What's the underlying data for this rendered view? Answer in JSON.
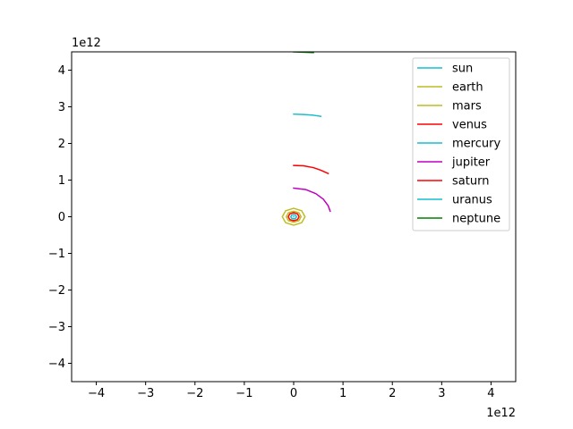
{
  "chart_data": {
    "type": "line",
    "title": "",
    "xlabel": "",
    "ylabel": "",
    "x_offset_label": "1e12",
    "y_offset_label": "1e12",
    "xlim": [
      -4.5,
      4.5
    ],
    "ylim": [
      -4.5,
      4.5
    ],
    "xticks": [
      -4,
      -3,
      -2,
      -1,
      0,
      1,
      2,
      3,
      4
    ],
    "yticks": [
      -4,
      -3,
      -2,
      -1,
      0,
      1,
      2,
      3,
      4
    ],
    "xtick_labels": [
      "−4",
      "−3",
      "−2",
      "−1",
      "0",
      "1",
      "2",
      "3",
      "4"
    ],
    "ytick_labels": [
      "−4",
      "−3",
      "−2",
      "−1",
      "0",
      "1",
      "2",
      "3",
      "4"
    ],
    "grid": false,
    "legend_position": "upper right",
    "series": [
      {
        "name": "sun",
        "color": "#17becf",
        "x": [
          0.0,
          0.001
        ],
        "y": [
          0.0,
          0.0
        ]
      },
      {
        "name": "earth",
        "color": "#bcbd22",
        "closed": true,
        "x": [
          0.15,
          0.106,
          0.0,
          -0.106,
          -0.15,
          -0.106,
          0.0,
          0.106
        ],
        "y": [
          0.0,
          0.106,
          0.15,
          0.106,
          0.0,
          -0.106,
          -0.15,
          -0.106
        ]
      },
      {
        "name": "mars",
        "color": "#bcbd22",
        "closed": true,
        "x": [
          0.23,
          0.163,
          0.0,
          -0.163,
          -0.23,
          -0.163,
          0.0,
          0.163
        ],
        "y": [
          0.0,
          0.163,
          0.23,
          0.163,
          0.0,
          -0.163,
          -0.23,
          -0.163
        ]
      },
      {
        "name": "venus",
        "color": "#ff0000",
        "closed": true,
        "x": [
          0.11,
          0.078,
          0.0,
          -0.078,
          -0.11,
          -0.078,
          0.0,
          0.078
        ],
        "y": [
          0.0,
          0.078,
          0.11,
          0.078,
          0.0,
          -0.078,
          -0.11,
          -0.078
        ]
      },
      {
        "name": "mercury",
        "color": "#17becf",
        "closed": true,
        "x": [
          0.058,
          0.041,
          0.0,
          -0.041,
          -0.058,
          -0.041,
          0.0,
          0.041
        ],
        "y": [
          0.0,
          0.041,
          0.058,
          0.041,
          0.0,
          -0.041,
          -0.058,
          -0.041
        ]
      },
      {
        "name": "jupiter",
        "color": "#bf00bf",
        "x": [
          0.0,
          0.25,
          0.45,
          0.6,
          0.7,
          0.74
        ],
        "y": [
          0.78,
          0.74,
          0.63,
          0.48,
          0.3,
          0.15
        ]
      },
      {
        "name": "saturn",
        "color": "#ff0000",
        "x": [
          0.0,
          0.2,
          0.4,
          0.55,
          0.7
        ],
        "y": [
          1.4,
          1.39,
          1.34,
          1.27,
          1.18
        ]
      },
      {
        "name": "uranus",
        "color": "#17becf",
        "x": [
          0.0,
          0.2,
          0.4,
          0.55
        ],
        "y": [
          2.8,
          2.79,
          2.77,
          2.74
        ]
      },
      {
        "name": "neptune",
        "color": "#008000",
        "x": [
          0.0,
          0.2,
          0.4
        ],
        "y": [
          4.5,
          4.49,
          4.48
        ]
      }
    ]
  }
}
